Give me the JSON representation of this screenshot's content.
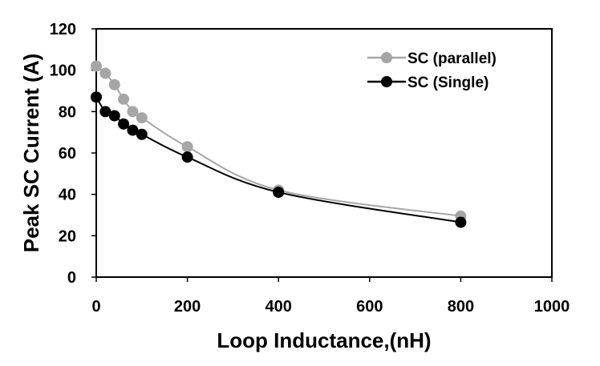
{
  "chart_data": {
    "type": "line",
    "title": "",
    "xlabel": "Loop Inductance,(nH)",
    "ylabel": "Peak SC Current (A)",
    "xlim": [
      0,
      1000
    ],
    "ylim": [
      0,
      120
    ],
    "xticks": [
      0,
      200,
      400,
      600,
      800,
      1000
    ],
    "yticks": [
      0,
      20,
      40,
      60,
      80,
      100,
      120
    ],
    "grid": false,
    "legend_position": "top-right",
    "series": [
      {
        "name": "SC (parallel)",
        "color": "#a6a6a6",
        "x": [
          0,
          20,
          40,
          60,
          80,
          100,
          200,
          400,
          800
        ],
        "y": [
          102,
          98.5,
          93,
          86,
          80,
          77,
          63,
          42,
          29.5
        ]
      },
      {
        "name": "SC (Single)",
        "color": "#000000",
        "x": [
          0,
          20,
          40,
          60,
          80,
          100,
          200,
          400,
          800
        ],
        "y": [
          87,
          80,
          78,
          74,
          71,
          69,
          58,
          41,
          26.5
        ]
      }
    ]
  }
}
